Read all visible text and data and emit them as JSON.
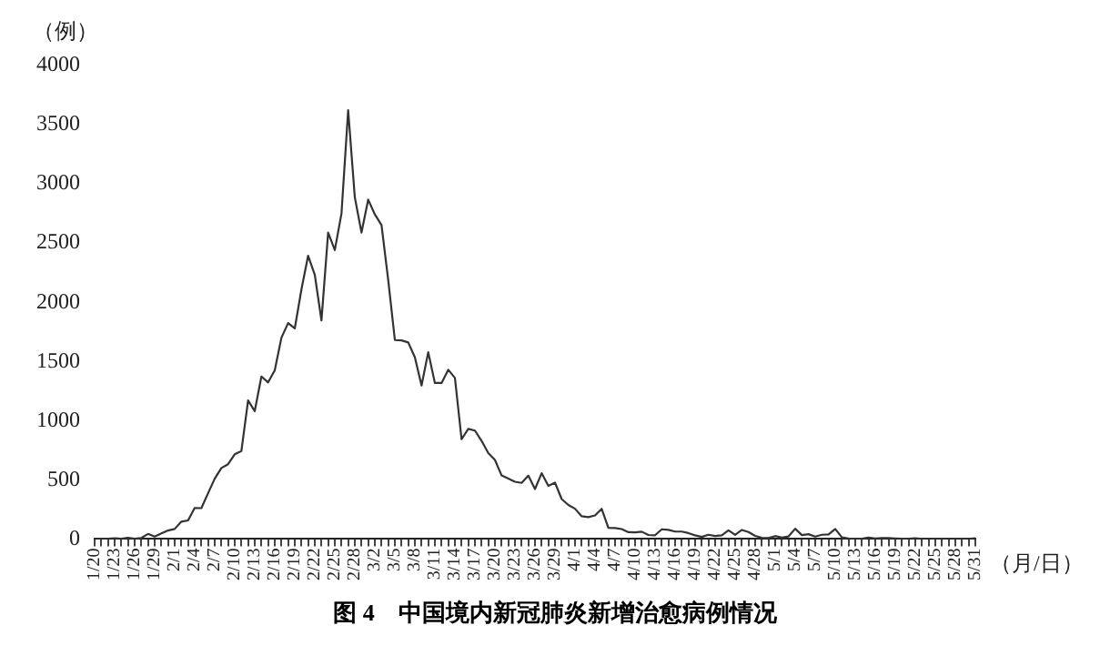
{
  "chart_data": {
    "type": "line",
    "title": "图 4　中国境内新冠肺炎新增治愈病例情况",
    "ylabel": "（例）",
    "xlabel": "（月/日）",
    "categories": [
      "1/20",
      null,
      null,
      "1/23",
      null,
      null,
      "1/26",
      null,
      null,
      "1/29",
      null,
      null,
      "2/1",
      null,
      null,
      "2/4",
      null,
      null,
      "2/7",
      null,
      null,
      "2/10",
      null,
      null,
      "2/13",
      null,
      null,
      "2/16",
      null,
      null,
      "2/19",
      null,
      null,
      "2/22",
      null,
      null,
      "2/25",
      null,
      null,
      "2/28",
      null,
      null,
      "3/2",
      null,
      null,
      "3/5",
      null,
      null,
      "3/8",
      null,
      null,
      "3/11",
      null,
      null,
      "3/14",
      null,
      null,
      "3/17",
      null,
      null,
      "3/20",
      null,
      null,
      "3/23",
      null,
      null,
      "3/26",
      null,
      null,
      "3/29",
      null,
      null,
      "4/1",
      null,
      null,
      "4/4",
      null,
      null,
      "4/7",
      null,
      null,
      "4/10",
      null,
      null,
      "4/13",
      null,
      null,
      "4/16",
      null,
      null,
      "4/19",
      null,
      null,
      "4/22",
      null,
      null,
      "4/25",
      null,
      null,
      "4/28",
      null,
      null,
      "5/1",
      null,
      null,
      "5/4",
      null,
      null,
      "5/7",
      null,
      null,
      "5/10",
      null,
      null,
      "5/13",
      null,
      null,
      "5/16",
      null,
      null,
      "5/19",
      null,
      null,
      "5/22",
      null,
      null,
      "5/25",
      null,
      null,
      "5/28",
      null,
      null,
      "5/31"
    ],
    "series": [
      {
        "color": "#333333",
        "values": [
          0,
          0,
          3,
          6,
          3,
          11,
          2,
          9,
          43,
          21,
          47,
          72,
          85,
          147,
          157,
          262,
          261,
          387,
          510,
          600,
          632,
          716,
          744,
          1171,
          1081,
          1373,
          1323,
          1425,
          1701,
          1824,
          1779,
          2109,
          2393,
          2231,
          1846,
          2589,
          2441,
          2750,
          3622,
          2885,
          2589,
          2867,
          2742,
          2652,
          2189,
          1681,
          1678,
          1661,
          1535,
          1297,
          1578,
          1318,
          1318,
          1430,
          1361,
          843,
          930,
          916,
          829,
          726,
          668,
          537,
          511,
          484,
          474,
          535,
          422,
          556,
          450,
          476,
          338,
          288,
          256,
          192,
          185,
          199,
          255,
          94,
          93,
          84,
          58,
          56,
          62,
          34,
          32,
          82,
          77,
          63,
          63,
          50,
          31,
          18,
          36,
          26,
          31,
          73,
          35,
          77,
          59,
          26,
          11,
          8,
          25,
          13,
          22,
          87,
          33,
          41,
          21,
          36,
          39,
          85,
          14,
          4,
          3,
          2,
          13,
          5,
          8,
          8,
          5,
          2,
          2,
          7,
          1,
          1,
          3,
          2,
          0,
          2,
          3,
          0,
          6
        ]
      }
    ],
    "ylim": [
      0,
      4000
    ],
    "yticks": [
      0,
      500,
      1000,
      1500,
      2000,
      2500,
      3000,
      3500,
      4000
    ],
    "grid": false,
    "legend": false,
    "marker": "none",
    "line_style": "solid"
  }
}
